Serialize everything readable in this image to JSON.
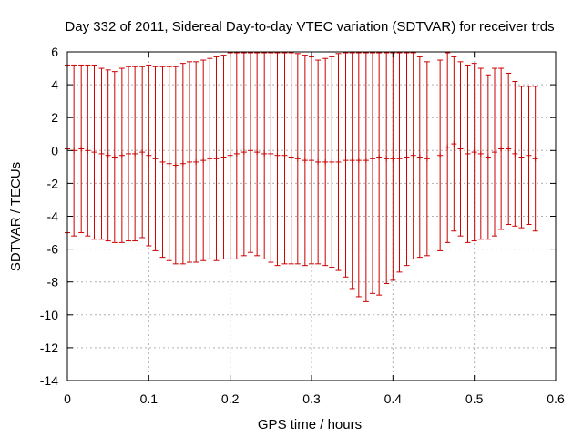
{
  "chart_data": {
    "type": "scatter",
    "title": "Day 332 of 2011, Sidereal Day-to-day VTEC variation (SDTVAR) for receiver trds",
    "xlabel": "GPS time / hours",
    "ylabel": "SDTVAR / TECUs",
    "xlim": [
      0,
      0.6
    ],
    "ylim": [
      -14,
      6
    ],
    "xticks": [
      0,
      0.1,
      0.2,
      0.3,
      0.4,
      0.5,
      0.6
    ],
    "yticks": [
      -14,
      -12,
      -10,
      -8,
      -6,
      -4,
      -2,
      0,
      2,
      4,
      6
    ],
    "xtick_labels": [
      "0",
      "0.1",
      "0.2",
      "0.3",
      "0.4",
      "0.5",
      "0.6"
    ],
    "ytick_labels": [
      "-14",
      "-12",
      "-10",
      "-8",
      "-6",
      "-4",
      "-2",
      "0",
      "2",
      "4",
      "6"
    ],
    "grid": true,
    "error_bars": true,
    "series_color": "#cc0000",
    "grid_color": "#b0b0b0",
    "series": [
      {
        "name": "SDTVAR",
        "x": [
          0,
          0.008,
          0.017,
          0.025,
          0.033,
          0.042,
          0.05,
          0.058,
          0.067,
          0.075,
          0.083,
          0.092,
          0.1,
          0.108,
          0.117,
          0.125,
          0.133,
          0.142,
          0.15,
          0.158,
          0.167,
          0.175,
          0.183,
          0.192,
          0.2,
          0.208,
          0.217,
          0.225,
          0.233,
          0.242,
          0.25,
          0.258,
          0.267,
          0.275,
          0.283,
          0.292,
          0.3,
          0.308,
          0.317,
          0.325,
          0.333,
          0.342,
          0.35,
          0.358,
          0.367,
          0.375,
          0.383,
          0.392,
          0.4,
          0.408,
          0.417,
          0.425,
          0.433,
          0.442,
          0.458,
          0.467,
          0.475,
          0.483,
          0.492,
          0.5,
          0.508,
          0.517,
          0.525,
          0.533,
          0.542,
          0.55,
          0.558,
          0.567,
          0.575
        ],
        "y": [
          0.1,
          0,
          0.1,
          0,
          -0.1,
          -0.2,
          -0.3,
          -0.4,
          -0.3,
          -0.2,
          -0.2,
          -0.1,
          -0.3,
          -0.5,
          -0.7,
          -0.8,
          -0.9,
          -0.8,
          -0.7,
          -0.7,
          -0.6,
          -0.5,
          -0.5,
          -0.4,
          -0.3,
          -0.2,
          -0.1,
          0,
          -0.1,
          -0.2,
          -0.2,
          -0.3,
          -0.3,
          -0.4,
          -0.5,
          -0.6,
          -0.6,
          -0.7,
          -0.7,
          -0.7,
          -0.7,
          -0.6,
          -0.6,
          -0.6,
          -0.6,
          -0.5,
          -0.4,
          -0.5,
          -0.5,
          -0.5,
          -0.4,
          -0.3,
          -0.4,
          -0.5,
          -0.3,
          0.2,
          0.4,
          0.1,
          -0.2,
          -0.1,
          -0.2,
          -0.4,
          -0.1,
          0.1,
          0.1,
          -0.2,
          -0.4,
          -0.3,
          -0.5
        ],
        "err": [
          5.1,
          5.2,
          5.1,
          5.2,
          5.3,
          5.2,
          5.2,
          5.2,
          5.3,
          5.3,
          5.3,
          5.2,
          5.5,
          5.6,
          5.8,
          5.9,
          6,
          6.1,
          6.1,
          6.1,
          6.1,
          6.1,
          6.2,
          6.2,
          6.3,
          6.4,
          6.3,
          6.2,
          6.3,
          6.4,
          6.6,
          6.7,
          6.6,
          6.5,
          6.4,
          6.4,
          6.3,
          6.2,
          6.3,
          6.4,
          6.6,
          7.1,
          7.8,
          8.3,
          8.6,
          8.2,
          8.4,
          7.6,
          7.4,
          6.9,
          6.6,
          6.3,
          6.1,
          5.9,
          5.8,
          5.8,
          5.3,
          5.3,
          5.4,
          5.4,
          5.2,
          5,
          5.1,
          4.9,
          4.6,
          4.4,
          4.3,
          4.2,
          4.4
        ]
      }
    ]
  }
}
